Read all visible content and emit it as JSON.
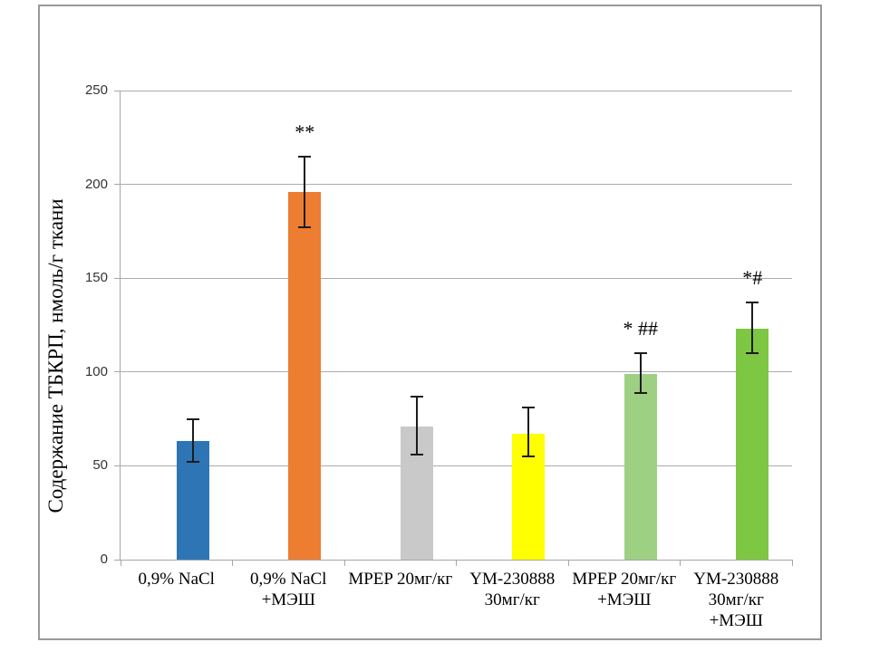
{
  "chart_data": {
    "type": "bar",
    "title": "",
    "xlabel": "",
    "ylabel": "Содержание ТБКРП, нмоль/г ткани",
    "ylim": [
      0,
      250
    ],
    "yticks": [
      0,
      50,
      100,
      150,
      200,
      250
    ],
    "grid": true,
    "legend": "none",
    "categories": [
      "0,9% NaCl",
      "0,9% NaCl\n+МЭШ",
      "MPEP 20мг/кг",
      "YM-230888\n30мг/кг",
      "MPEP 20мг/кг\n+МЭШ",
      "YM-230888\n30мг/кг\n+МЭШ"
    ],
    "values": [
      63,
      196,
      71,
      67,
      99,
      123
    ],
    "error_low": [
      52,
      177,
      56,
      55,
      89,
      110
    ],
    "error_high": [
      75,
      215,
      87,
      81,
      110,
      137
    ],
    "annotations": [
      "",
      "**",
      "",
      "",
      "* ##",
      "*#"
    ],
    "bar_colors": [
      "#2E75B6",
      "#ED7D31",
      "#C9C9C9",
      "#FFFF00",
      "#9ED084",
      "#7DC742"
    ],
    "axis_color": "#A6A6A6",
    "gridline_color": "#ABABAB",
    "error_bar_color": "#1C1C1C",
    "frame_border_color": "#999999",
    "tick_label_color": "#333333",
    "category_label_color": "#000000"
  }
}
